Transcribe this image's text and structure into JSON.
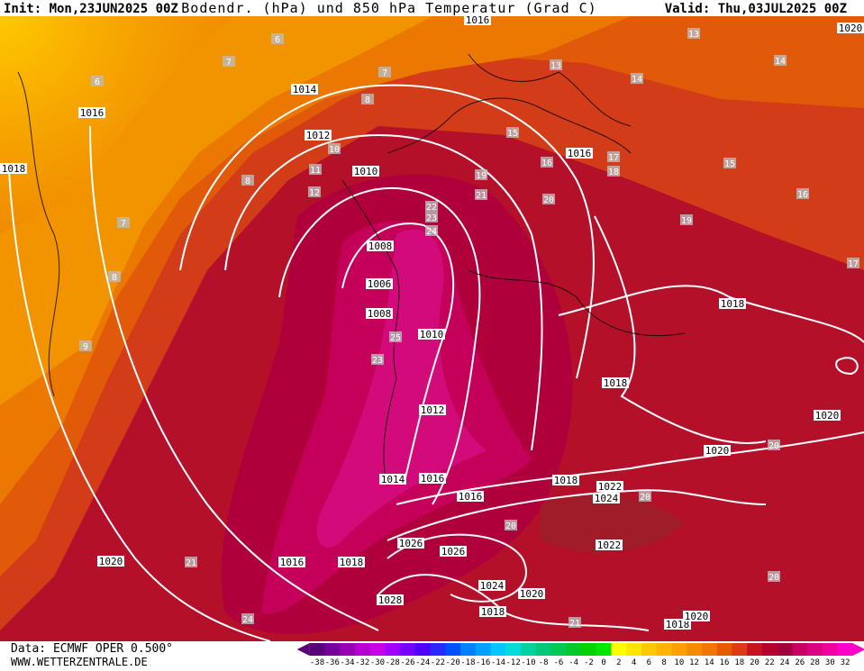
{
  "header": {
    "init": "Init: Mon,23JUN2025 00Z",
    "title": "Bodendr. (hPa) und 850 hPa Temperatur (Grad C)",
    "valid": "Valid: Thu,03JUL2025 00Z"
  },
  "footer": {
    "source": "Data: ECMWF OPER 0.500°",
    "website": "WWW.WETTERZENTRALE.DE"
  },
  "isobar_labels": [
    "1014",
    "1016",
    "1012",
    "1010",
    "1018",
    "1016",
    "1016",
    "1008",
    "1006",
    "1008",
    "1010",
    "1012",
    "1014",
    "1016",
    "1016",
    "1018",
    "1018",
    "1018",
    "1020",
    "1020",
    "1022",
    "1024",
    "1022",
    "1026",
    "1026",
    "1024",
    "1020",
    "1018",
    "1028",
    "1018",
    "1016",
    "1020",
    "1018",
    "1020",
    "1020"
  ],
  "temperature_labels": [
    "6",
    "7",
    "7",
    "6",
    "8",
    "9",
    "8",
    "8",
    "7",
    "11",
    "12",
    "10",
    "13",
    "13",
    "14",
    "14",
    "15",
    "15",
    "16",
    "17",
    "18",
    "16",
    "17",
    "19",
    "19",
    "21",
    "20",
    "22",
    "23",
    "24",
    "25",
    "23",
    "20",
    "20",
    "20",
    "20",
    "21",
    "21",
    "24"
  ],
  "colorbar": {
    "labels": [
      "-38",
      "-36",
      "-34",
      "-32",
      "-30",
      "-28",
      "-26",
      "-24",
      "-22",
      "-20",
      "-18",
      "-16",
      "-14",
      "-12",
      "-10",
      "-8",
      "-6",
      "-4",
      "-2",
      "0",
      "2",
      "4",
      "6",
      "8",
      "10",
      "12",
      "14",
      "16",
      "18",
      "20",
      "22",
      "24",
      "26",
      "28",
      "30",
      "32"
    ],
    "colors": [
      "#5a0078",
      "#78009a",
      "#9600b4",
      "#b400d2",
      "#c800e6",
      "#a000ff",
      "#7800ff",
      "#5000ff",
      "#2828ff",
      "#0050ff",
      "#0082ff",
      "#00a0ff",
      "#00c8ff",
      "#00dcdc",
      "#00d2a0",
      "#00c878",
      "#00c850",
      "#00c828",
      "#00d200",
      "#00e600",
      "#ffff00",
      "#ffe600",
      "#ffc800",
      "#ffb400",
      "#ffa000",
      "#f58c00",
      "#f07800",
      "#e65a00",
      "#dc3c14",
      "#c8141e",
      "#b4002d",
      "#a0003c",
      "#c80064",
      "#dc0082",
      "#f000a0",
      "#ff00c8"
    ]
  }
}
